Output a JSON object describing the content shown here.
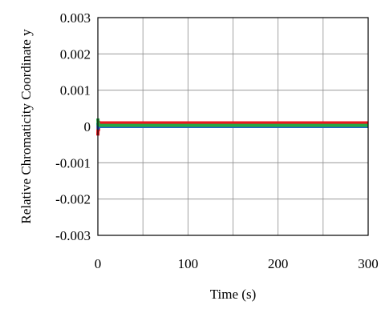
{
  "chart_data": {
    "type": "line",
    "title": "",
    "xlabel": "Time  (s)",
    "ylabel": "Relative Chromaticity Coordinate y",
    "xlim": [
      0,
      300
    ],
    "ylim": [
      -0.003,
      0.003
    ],
    "x_ticks": [
      0,
      100,
      200,
      300
    ],
    "x_tick_labels": [
      "0",
      "100",
      "200",
      "300"
    ],
    "y_ticks": [
      0.003,
      0.002,
      0.001,
      0,
      -0.001,
      -0.002,
      -0.003
    ],
    "y_tick_labels": [
      "0.003",
      "0.002",
      "0.001",
      "0",
      "-0.001",
      "-0.002",
      "-0.003"
    ],
    "grid": true,
    "x_minor_gridlines": [
      50,
      150,
      250
    ],
    "legend": "none",
    "series": [
      {
        "color": "#e8191f",
        "x": [
          0,
          0.4,
          0.8,
          1.2,
          1.6,
          2,
          3,
          300
        ],
        "y": [
          -0.00025,
          0.0001,
          -0.0001,
          0.00012,
          8e-05,
          0.0001,
          0.0001,
          0.0001
        ]
      },
      {
        "color": "#1f5fcf",
        "x": [
          0,
          0.4,
          0.8,
          1.2,
          1.6,
          2,
          3,
          300
        ],
        "y": [
          0.0001,
          -5e-05,
          5e-05,
          0.0,
          1e-05,
          0.0,
          0.0,
          0.0
        ]
      },
      {
        "color": "#27a844",
        "x": [
          0,
          0.4,
          0.8,
          1.2,
          1.6,
          2,
          3,
          300
        ],
        "y": [
          0.00022,
          5e-05,
          8e-05,
          4e-05,
          4e-05,
          3e-05,
          3e-05,
          3e-05
        ]
      }
    ]
  }
}
